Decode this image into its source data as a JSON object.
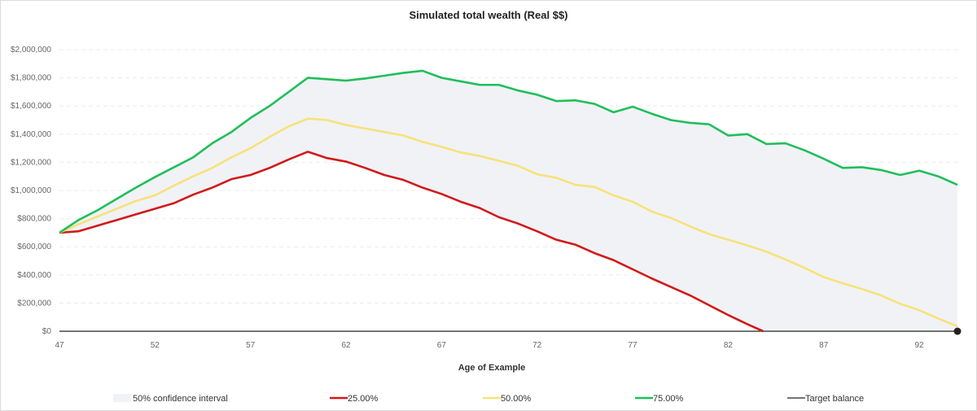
{
  "chart_data": {
    "type": "line",
    "title": "Simulated total wealth (Real $$)",
    "xlabel": "Age of Example",
    "ylabel": "",
    "xlim": [
      47,
      94
    ],
    "ylim": [
      0,
      2000000
    ],
    "x_ticks": [
      47,
      52,
      57,
      62,
      67,
      72,
      77,
      82,
      87,
      92
    ],
    "y_ticks": [
      0,
      200000,
      400000,
      600000,
      800000,
      1000000,
      1200000,
      1400000,
      1600000,
      1800000,
      2000000
    ],
    "y_tick_labels": [
      "$0",
      "$200,000",
      "$400,000",
      "$600,000",
      "$800,000",
      "$1,000,000",
      "$1,200,000",
      "$1,400,000",
      "$1,600,000",
      "$1,800,000",
      "$2,000,000"
    ],
    "grid": true,
    "legend_position": "bottom",
    "x": [
      47,
      48,
      49,
      50,
      51,
      52,
      53,
      54,
      55,
      56,
      57,
      58,
      59,
      60,
      61,
      62,
      63,
      64,
      65,
      66,
      67,
      68,
      69,
      70,
      71,
      72,
      73,
      74,
      75,
      76,
      77,
      78,
      79,
      80,
      81,
      82,
      83,
      84,
      85,
      86,
      87,
      88,
      89,
      90,
      91,
      92,
      93,
      94
    ],
    "band": {
      "name": "50% confidence interval",
      "color": "#f1f2f6"
    },
    "series": [
      {
        "name": "25.00%",
        "color": "#d11a1a",
        "values": [
          700000,
          710000,
          750000,
          790000,
          830000,
          870000,
          910000,
          970000,
          1020000,
          1080000,
          1110000,
          1160000,
          1220000,
          1275000,
          1230000,
          1205000,
          1160000,
          1110000,
          1075000,
          1020000,
          975000,
          920000,
          875000,
          810000,
          765000,
          710000,
          650000,
          615000,
          555000,
          505000,
          440000,
          375000,
          315000,
          255000,
          185000,
          115000,
          50000,
          -10000,
          null,
          null,
          null,
          null,
          null,
          null,
          null,
          null,
          null,
          null
        ]
      },
      {
        "name": "50.00%",
        "color": "#f7e27a",
        "values": [
          700000,
          760000,
          815000,
          870000,
          925000,
          965000,
          1035000,
          1100000,
          1160000,
          1235000,
          1300000,
          1380000,
          1455000,
          1510000,
          1500000,
          1465000,
          1440000,
          1415000,
          1390000,
          1345000,
          1310000,
          1270000,
          1245000,
          1210000,
          1175000,
          1115000,
          1090000,
          1040000,
          1025000,
          965000,
          920000,
          850000,
          805000,
          745000,
          690000,
          650000,
          610000,
          565000,
          510000,
          450000,
          385000,
          340000,
          300000,
          255000,
          195000,
          150000,
          90000,
          35000
        ]
      },
      {
        "name": "75.00%",
        "color": "#1fbf5a",
        "values": [
          700000,
          790000,
          860000,
          940000,
          1020000,
          1095000,
          1165000,
          1235000,
          1335000,
          1415000,
          1515000,
          1600000,
          1700000,
          1800000,
          1790000,
          1780000,
          1795000,
          1815000,
          1835000,
          1850000,
          1800000,
          1775000,
          1750000,
          1750000,
          1710000,
          1680000,
          1635000,
          1640000,
          1615000,
          1555000,
          1595000,
          1545000,
          1500000,
          1480000,
          1470000,
          1390000,
          1400000,
          1330000,
          1335000,
          1285000,
          1225000,
          1160000,
          1165000,
          1145000,
          1110000,
          1140000,
          1100000,
          1040000
        ]
      }
    ],
    "target": {
      "name": "Target balance",
      "color": "#222222",
      "value": 0
    }
  }
}
